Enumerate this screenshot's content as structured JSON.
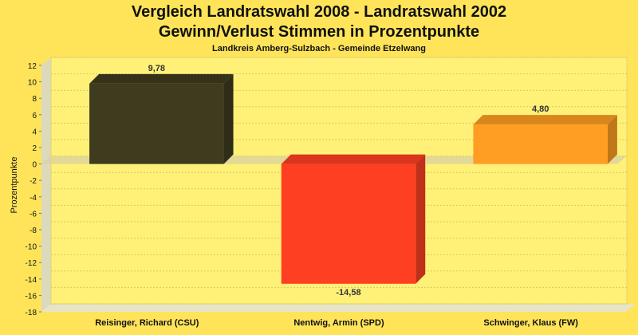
{
  "chart_data": {
    "type": "bar",
    "title": "Vergleich Landratswahl 2008 - Landratswahl 2002",
    "title_line2": "Gewinn/Verlust Stimmen in Prozentpunkte",
    "subtitle": "Landkreis Amberg-Sulzbach - Gemeinde Etzelwang",
    "ylabel": "Prozentpunkte",
    "xlabel": "",
    "ylim": [
      -18,
      12
    ],
    "yticks": [
      12,
      10,
      8,
      6,
      4,
      2,
      0,
      -2,
      -4,
      -6,
      -8,
      -10,
      -12,
      -14,
      -16,
      -18
    ],
    "categories": [
      "Reisinger, Richard (CSU)",
      "Nentwig, Armin (SPD)",
      "Schwinger, Klaus (FW)"
    ],
    "values": [
      9.78,
      -14.58,
      4.8
    ],
    "value_labels": [
      "9,78",
      "-14,58",
      "4,80"
    ],
    "colors": [
      "#3f3b1f",
      "#ff3f22",
      "#ff9e22"
    ],
    "grid": true,
    "legend": "none"
  }
}
